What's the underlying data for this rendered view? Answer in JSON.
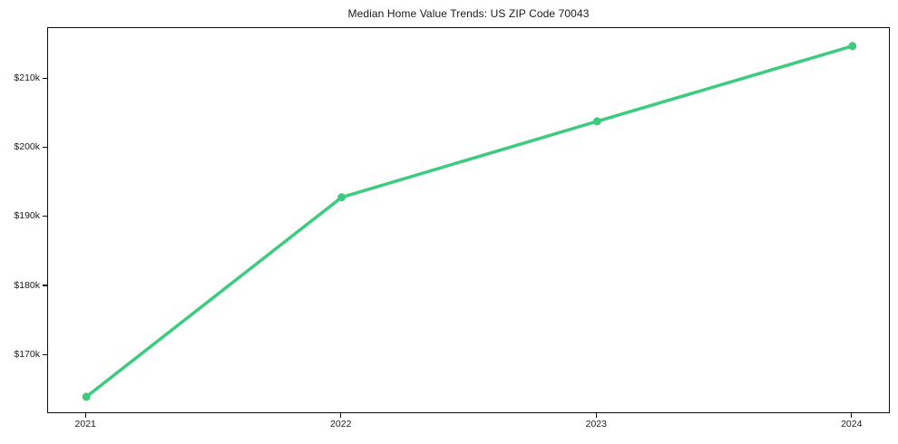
{
  "chart_data": {
    "type": "line",
    "title": "Median Home Value Trends: US ZIP Code 70043",
    "x": [
      2021,
      2022,
      2023,
      2024
    ],
    "series": [
      {
        "name": "Median Home Value",
        "values": [
          164000,
          192900,
          203900,
          214800
        ]
      }
    ],
    "xlabel": "",
    "ylabel": "",
    "xlim": [
      2020.85,
      2024.15
    ],
    "ylim": [
      161500,
      217400
    ],
    "xticks": [
      {
        "value": 2021,
        "label": "2021"
      },
      {
        "value": 2022,
        "label": "2022"
      },
      {
        "value": 2023,
        "label": "2023"
      },
      {
        "value": 2024,
        "label": "2024"
      }
    ],
    "yticks": [
      {
        "value": 170000,
        "label": "$170k"
      },
      {
        "value": 180000,
        "label": "$180k"
      },
      {
        "value": 190000,
        "label": "$190k"
      },
      {
        "value": 200000,
        "label": "$200k"
      },
      {
        "value": 210000,
        "label": "$210k"
      }
    ],
    "grid": false,
    "legend": null,
    "line_color": "#3ccb7f",
    "line_width": 3.5,
    "marker": "circle",
    "marker_radius": 4.5,
    "background": "#ffffff",
    "axis_color": "#0d0d0d",
    "tick_label_color": "#1a1a1a"
  }
}
